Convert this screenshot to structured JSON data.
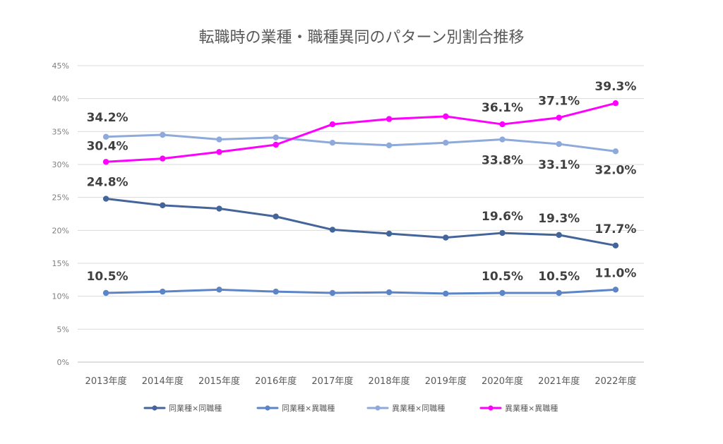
{
  "chart_data": {
    "type": "line",
    "title": "転職時の業種・職種異同のパターン別割合推移",
    "xlabel": "",
    "ylabel": "",
    "categories": [
      "2013年度",
      "2014年度",
      "2015年度",
      "2016年度",
      "2017年度",
      "2018年度",
      "2019年度",
      "2020年度",
      "2021年度",
      "2022年度"
    ],
    "ylim": [
      0,
      45
    ],
    "yticks": [
      "0%",
      "5%",
      "10%",
      "15%",
      "20%",
      "25%",
      "30%",
      "35%",
      "40%",
      "45%"
    ],
    "grid": true,
    "legend_position": "bottom",
    "series": [
      {
        "name": "同業種×同職種",
        "color": "#44659a",
        "values": [
          24.8,
          23.8,
          23.3,
          22.1,
          20.1,
          19.5,
          18.9,
          19.6,
          19.3,
          17.7
        ],
        "labels": [
          "24.8%",
          "",
          "",
          "",
          "",
          "",
          "",
          "19.6%",
          "19.3%",
          "17.7%"
        ]
      },
      {
        "name": "同業種×異職種",
        "color": "#5b85c6",
        "values": [
          10.5,
          10.7,
          11.0,
          10.7,
          10.5,
          10.6,
          10.4,
          10.5,
          10.5,
          11.0
        ],
        "labels": [
          "10.5%",
          "",
          "",
          "",
          "",
          "",
          "",
          "10.5%",
          "10.5%",
          "11.0%"
        ]
      },
      {
        "name": "異業種×同職種",
        "color": "#8eaadb",
        "values": [
          34.2,
          34.5,
          33.8,
          34.1,
          33.3,
          32.9,
          33.3,
          33.8,
          33.1,
          32.0
        ],
        "labels": [
          "34.2%",
          "",
          "",
          "",
          "",
          "",
          "",
          "33.8%",
          "33.1%",
          "32.0%"
        ]
      },
      {
        "name": "異業種×異職種",
        "color": "#ff00ff",
        "values": [
          30.4,
          30.9,
          31.9,
          33.0,
          36.1,
          36.9,
          37.3,
          36.1,
          37.1,
          39.3
        ],
        "labels": [
          "30.4%",
          "",
          "",
          "",
          "",
          "",
          "",
          "36.1%",
          "37.1%",
          "39.3%"
        ]
      }
    ]
  }
}
